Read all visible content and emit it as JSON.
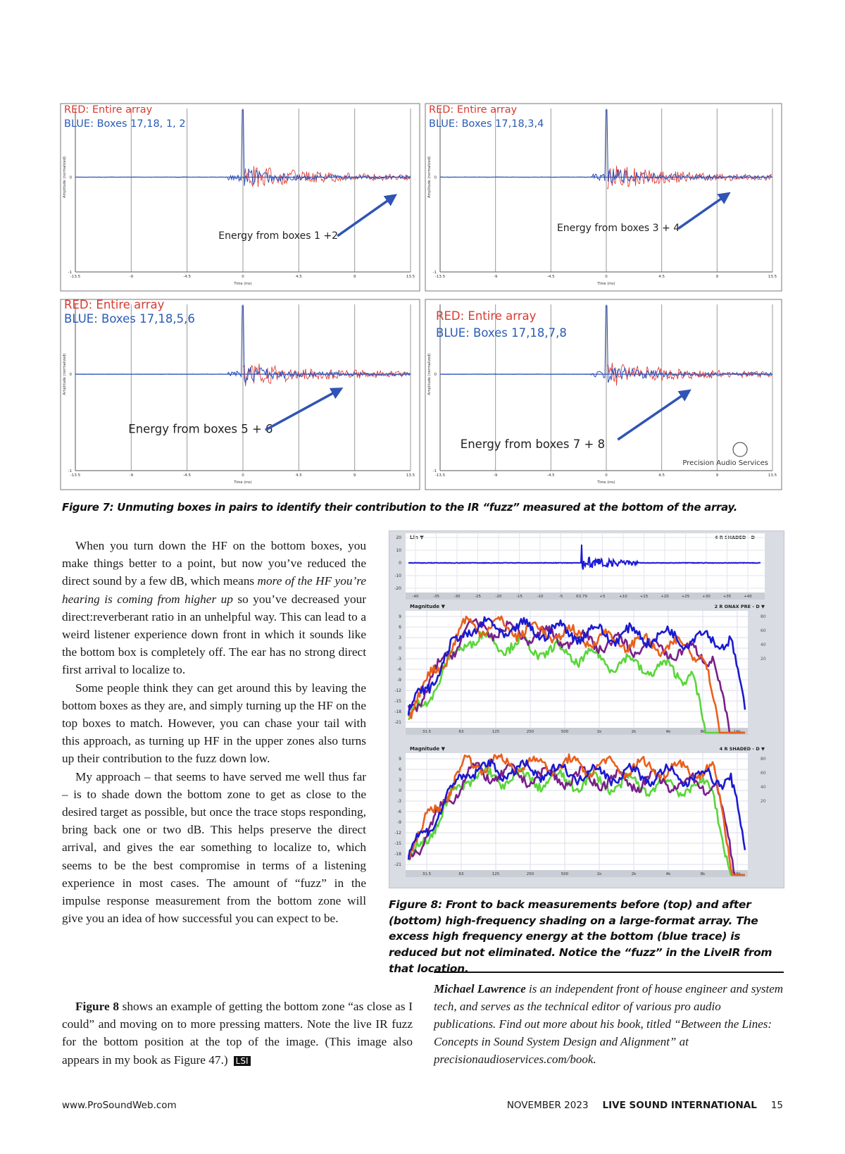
{
  "figure7": {
    "panels": [
      {
        "red": "RED: Entire array",
        "blue": "BLUE: Boxes 17,18, 1, 2",
        "annotation": "Energy from boxes 1 +2"
      },
      {
        "red": "RED: Entire array",
        "blue": "BLUE: Boxes 17,18,3,4",
        "annotation": "Energy from boxes 3 + 4"
      },
      {
        "red": "RED: Entire array",
        "blue": "BLUE: Boxes 17,18,5,6",
        "annotation": "Energy from boxes 5 + 6"
      },
      {
        "red": "RED: Entire array",
        "blue": "BLUE: Boxes 17,18,7,8",
        "annotation": "Energy from boxes 7 + 8"
      }
    ],
    "time_ticks": [
      "-13.5",
      "-9",
      "-4.5",
      "0",
      "4.5",
      "9",
      "13.5"
    ],
    "time_label": "Time (ms)",
    "amplitude_label": "Amplitude (normalized)",
    "amplitude_ticks": [
      "0",
      "-1"
    ],
    "logo": "Precision Audio Services",
    "caption": "Figure 7: Unmuting boxes in pairs to identify their contribution to the IR “fuzz” measured at the bottom of the array."
  },
  "figure8": {
    "impulse": {
      "label": "Lin ▼",
      "tag": "4 R SHADED - D",
      "y_ticks": [
        "20",
        "10",
        "0",
        "-10",
        "-20"
      ],
      "x_ticks": [
        "-40",
        "-35",
        "-30",
        "-25",
        "-20",
        "-15",
        "-10",
        "-5",
        "63.79",
        "+5",
        "+10",
        "+15",
        "+20",
        "+25",
        "+30",
        "+35",
        "+40"
      ]
    },
    "panels": [
      {
        "label": "Magnitude ▼",
        "tag": "2 R ONAX PRE - D ▼"
      },
      {
        "label": "Magnitude ▼",
        "tag": "4 R SHADED - D ▼"
      }
    ],
    "magnitude_ticks": [
      "9",
      "6",
      "3",
      "0",
      "-3",
      "-6",
      "-9",
      "-12",
      "-15",
      "-18",
      "-21"
    ],
    "right_ticks": [
      "80",
      "60",
      "40",
      "20"
    ],
    "frequency_ticks": [
      "31.5",
      "63",
      "125",
      "250",
      "500",
      "1k",
      "2k",
      "4k",
      "8k",
      "16k"
    ],
    "caption": "Figure 8: Front to back measurements before (top) and after (bottom) high-frequency shading on a large-format array. The excess high frequency energy at the bottom (blue trace) is reduced but not eliminated. Notice the “fuzz” in the LiveIR from that location."
  },
  "article": {
    "paragraphs": [
      [
        "When you turn down the HF on the bottom boxes, you make things better to a point, but now you’ve reduced the direct sound by a few dB, which means ",
        "more of the HF you’re hearing is coming from higher up",
        " so you’ve decreased your direct:reverberant ratio in an unhelpful way. This can lead to a weird listener experience down front in which it sounds like the bottom box is completely off. The ear has no strong direct first arrival to localize to."
      ],
      [
        "Some people think they can get around this by leaving the bottom boxes as they are, and simply turning up the HF on the top boxes to match. However, you can chase your tail with this approach, as turning up HF in the upper zones also turns up their contribution to the fuzz down low."
      ],
      [
        "My approach – that seems to have served me well thus far – is to shade down the bottom zone to get as close to the desired target as possible, but once the trace stops responding, bring back one or two dB. This helps preserve the direct arrival, and gives the ear something to localize to, which seems to be the best compromise in terms of a listening experience in most cases. The amount of “fuzz” in the impulse response measurement from the bottom zone will give you an idea of how successful you can expect to be."
      ],
      [
        "Figure 8",
        " shows an example of getting the bottom zone “as close as I could” and moving on to more pressing matters. Note the live IR fuzz for the bottom position at the top of the image. (This image also appears in my book as Figure 47.)",
        "LSI"
      ]
    ]
  },
  "bio": {
    "name": "Michael Lawrence",
    "text": "is an independent front of house engineer and system tech, and serves as the technical editor of various pro audio publications. Find out more about his book, titled “Between the Lines: Concepts in Sound System Design and Alignment” at precisionaudioservices.com/book."
  },
  "footer": {
    "url": "www.ProSoundWeb.com",
    "issue": "NOVEMBER 2023",
    "magazine": "LIVE SOUND INTERNATIONAL",
    "page": "15"
  }
}
